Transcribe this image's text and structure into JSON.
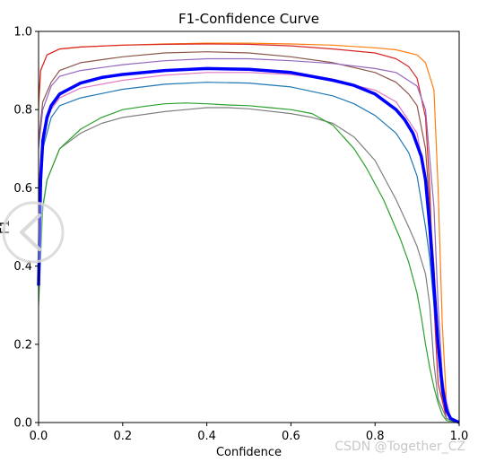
{
  "chart_data": {
    "type": "line",
    "title": "F1-Confidence Curve",
    "xlabel": "Confidence",
    "ylabel": "F1",
    "xlim": [
      0,
      1
    ],
    "ylim": [
      0,
      1
    ],
    "x_ticks": [
      "0.0",
      "0.2",
      "0.4",
      "0.6",
      "0.8",
      "1.0"
    ],
    "y_ticks": [
      "0.0",
      "0.2",
      "0.4",
      "0.6",
      "0.8",
      "1.0"
    ],
    "grid": false,
    "series": [
      {
        "color": "#ff7f0e",
        "x": [
          0,
          0.005,
          0.02,
          0.05,
          0.1,
          0.2,
          0.3,
          0.4,
          0.5,
          0.6,
          0.7,
          0.8,
          0.85,
          0.9,
          0.92,
          0.94,
          0.95,
          0.96,
          0.97,
          0.98,
          1.0
        ],
        "y": [
          0.8,
          0.9,
          0.94,
          0.955,
          0.96,
          0.965,
          0.968,
          0.97,
          0.97,
          0.968,
          0.965,
          0.958,
          0.953,
          0.94,
          0.92,
          0.85,
          0.6,
          0.25,
          0.05,
          0.01,
          0
        ]
      },
      {
        "color": "#d62728",
        "x": [
          0,
          0.005,
          0.02,
          0.05,
          0.1,
          0.2,
          0.3,
          0.4,
          0.5,
          0.6,
          0.7,
          0.8,
          0.85,
          0.88,
          0.9,
          0.92,
          0.93,
          0.94,
          0.95,
          0.97,
          1.0
        ],
        "y": [
          0.82,
          0.9,
          0.94,
          0.955,
          0.96,
          0.965,
          0.967,
          0.968,
          0.967,
          0.963,
          0.955,
          0.945,
          0.93,
          0.91,
          0.88,
          0.78,
          0.6,
          0.3,
          0.1,
          0.01,
          0
        ]
      },
      {
        "color": "#8c564b",
        "x": [
          0,
          0.01,
          0.03,
          0.05,
          0.1,
          0.2,
          0.3,
          0.4,
          0.5,
          0.6,
          0.7,
          0.8,
          0.85,
          0.88,
          0.9,
          0.92,
          0.94,
          0.95,
          0.96,
          0.98,
          1.0
        ],
        "y": [
          0.72,
          0.82,
          0.87,
          0.9,
          0.92,
          0.935,
          0.945,
          0.948,
          0.945,
          0.935,
          0.92,
          0.895,
          0.87,
          0.84,
          0.81,
          0.7,
          0.4,
          0.18,
          0.06,
          0.01,
          0
        ]
      },
      {
        "color": "#9467bd",
        "x": [
          0,
          0.01,
          0.03,
          0.05,
          0.1,
          0.2,
          0.3,
          0.4,
          0.5,
          0.6,
          0.7,
          0.8,
          0.85,
          0.9,
          0.92,
          0.94,
          0.95,
          0.96,
          0.97,
          0.98,
          1.0
        ],
        "y": [
          0.7,
          0.8,
          0.86,
          0.885,
          0.9,
          0.915,
          0.925,
          0.93,
          0.93,
          0.925,
          0.918,
          0.905,
          0.895,
          0.86,
          0.8,
          0.55,
          0.3,
          0.12,
          0.04,
          0.01,
          0
        ]
      },
      {
        "color": "#e377c2",
        "x": [
          0,
          0.01,
          0.03,
          0.05,
          0.1,
          0.2,
          0.3,
          0.4,
          0.5,
          0.6,
          0.7,
          0.8,
          0.85,
          0.9,
          0.92,
          0.94,
          0.96,
          0.98,
          1.0
        ],
        "y": [
          0.6,
          0.74,
          0.8,
          0.83,
          0.855,
          0.875,
          0.888,
          0.895,
          0.895,
          0.89,
          0.875,
          0.85,
          0.82,
          0.74,
          0.62,
          0.35,
          0.1,
          0.01,
          0
        ]
      },
      {
        "color": "#1f77b4",
        "x": [
          0,
          0.01,
          0.03,
          0.05,
          0.1,
          0.2,
          0.3,
          0.4,
          0.5,
          0.6,
          0.7,
          0.75,
          0.8,
          0.85,
          0.88,
          0.9,
          0.92,
          0.93,
          0.94,
          0.95,
          0.96,
          0.98,
          1.0
        ],
        "y": [
          0.55,
          0.7,
          0.78,
          0.81,
          0.83,
          0.852,
          0.865,
          0.87,
          0.868,
          0.858,
          0.835,
          0.815,
          0.785,
          0.74,
          0.69,
          0.63,
          0.5,
          0.42,
          0.3,
          0.18,
          0.08,
          0.01,
          0
        ]
      },
      {
        "color": "#7f7f7f",
        "x": [
          0,
          0.01,
          0.02,
          0.05,
          0.1,
          0.15,
          0.2,
          0.3,
          0.35,
          0.4,
          0.45,
          0.5,
          0.6,
          0.65,
          0.7,
          0.75,
          0.8,
          0.85,
          0.88,
          0.9,
          0.92,
          0.93,
          0.94,
          0.95,
          0.97,
          1.0
        ],
        "y": [
          0.35,
          0.55,
          0.62,
          0.7,
          0.74,
          0.765,
          0.78,
          0.795,
          0.8,
          0.805,
          0.805,
          0.802,
          0.79,
          0.78,
          0.765,
          0.73,
          0.67,
          0.57,
          0.5,
          0.45,
          0.38,
          0.3,
          0.15,
          0.06,
          0.01,
          0
        ]
      },
      {
        "color": "#2ca02c",
        "x": [
          0,
          0.01,
          0.02,
          0.05,
          0.1,
          0.15,
          0.2,
          0.25,
          0.3,
          0.35,
          0.4,
          0.45,
          0.5,
          0.55,
          0.6,
          0.65,
          0.7,
          0.75,
          0.78,
          0.8,
          0.82,
          0.84,
          0.86,
          0.88,
          0.9,
          0.91,
          0.92,
          0.93,
          0.94,
          0.95,
          0.96,
          0.97,
          1.0
        ],
        "y": [
          0.3,
          0.55,
          0.62,
          0.7,
          0.75,
          0.78,
          0.8,
          0.808,
          0.815,
          0.817,
          0.815,
          0.812,
          0.81,
          0.805,
          0.8,
          0.79,
          0.76,
          0.7,
          0.65,
          0.61,
          0.57,
          0.52,
          0.47,
          0.41,
          0.33,
          0.27,
          0.2,
          0.14,
          0.09,
          0.05,
          0.02,
          0.005,
          0
        ]
      },
      {
        "color": "#0000ff",
        "bold": true,
        "x": [
          0,
          0.005,
          0.01,
          0.02,
          0.03,
          0.05,
          0.1,
          0.15,
          0.2,
          0.3,
          0.4,
          0.5,
          0.6,
          0.7,
          0.75,
          0.8,
          0.85,
          0.87,
          0.89,
          0.91,
          0.92,
          0.93,
          0.94,
          0.95,
          0.96,
          0.97,
          0.98,
          1.0
        ],
        "y": [
          0.35,
          0.62,
          0.72,
          0.78,
          0.81,
          0.84,
          0.868,
          0.882,
          0.89,
          0.9,
          0.905,
          0.903,
          0.895,
          0.875,
          0.862,
          0.84,
          0.8,
          0.775,
          0.74,
          0.68,
          0.62,
          0.5,
          0.35,
          0.2,
          0.09,
          0.03,
          0.01,
          0
        ]
      }
    ]
  },
  "watermark": "CSDN @Together_CZ"
}
